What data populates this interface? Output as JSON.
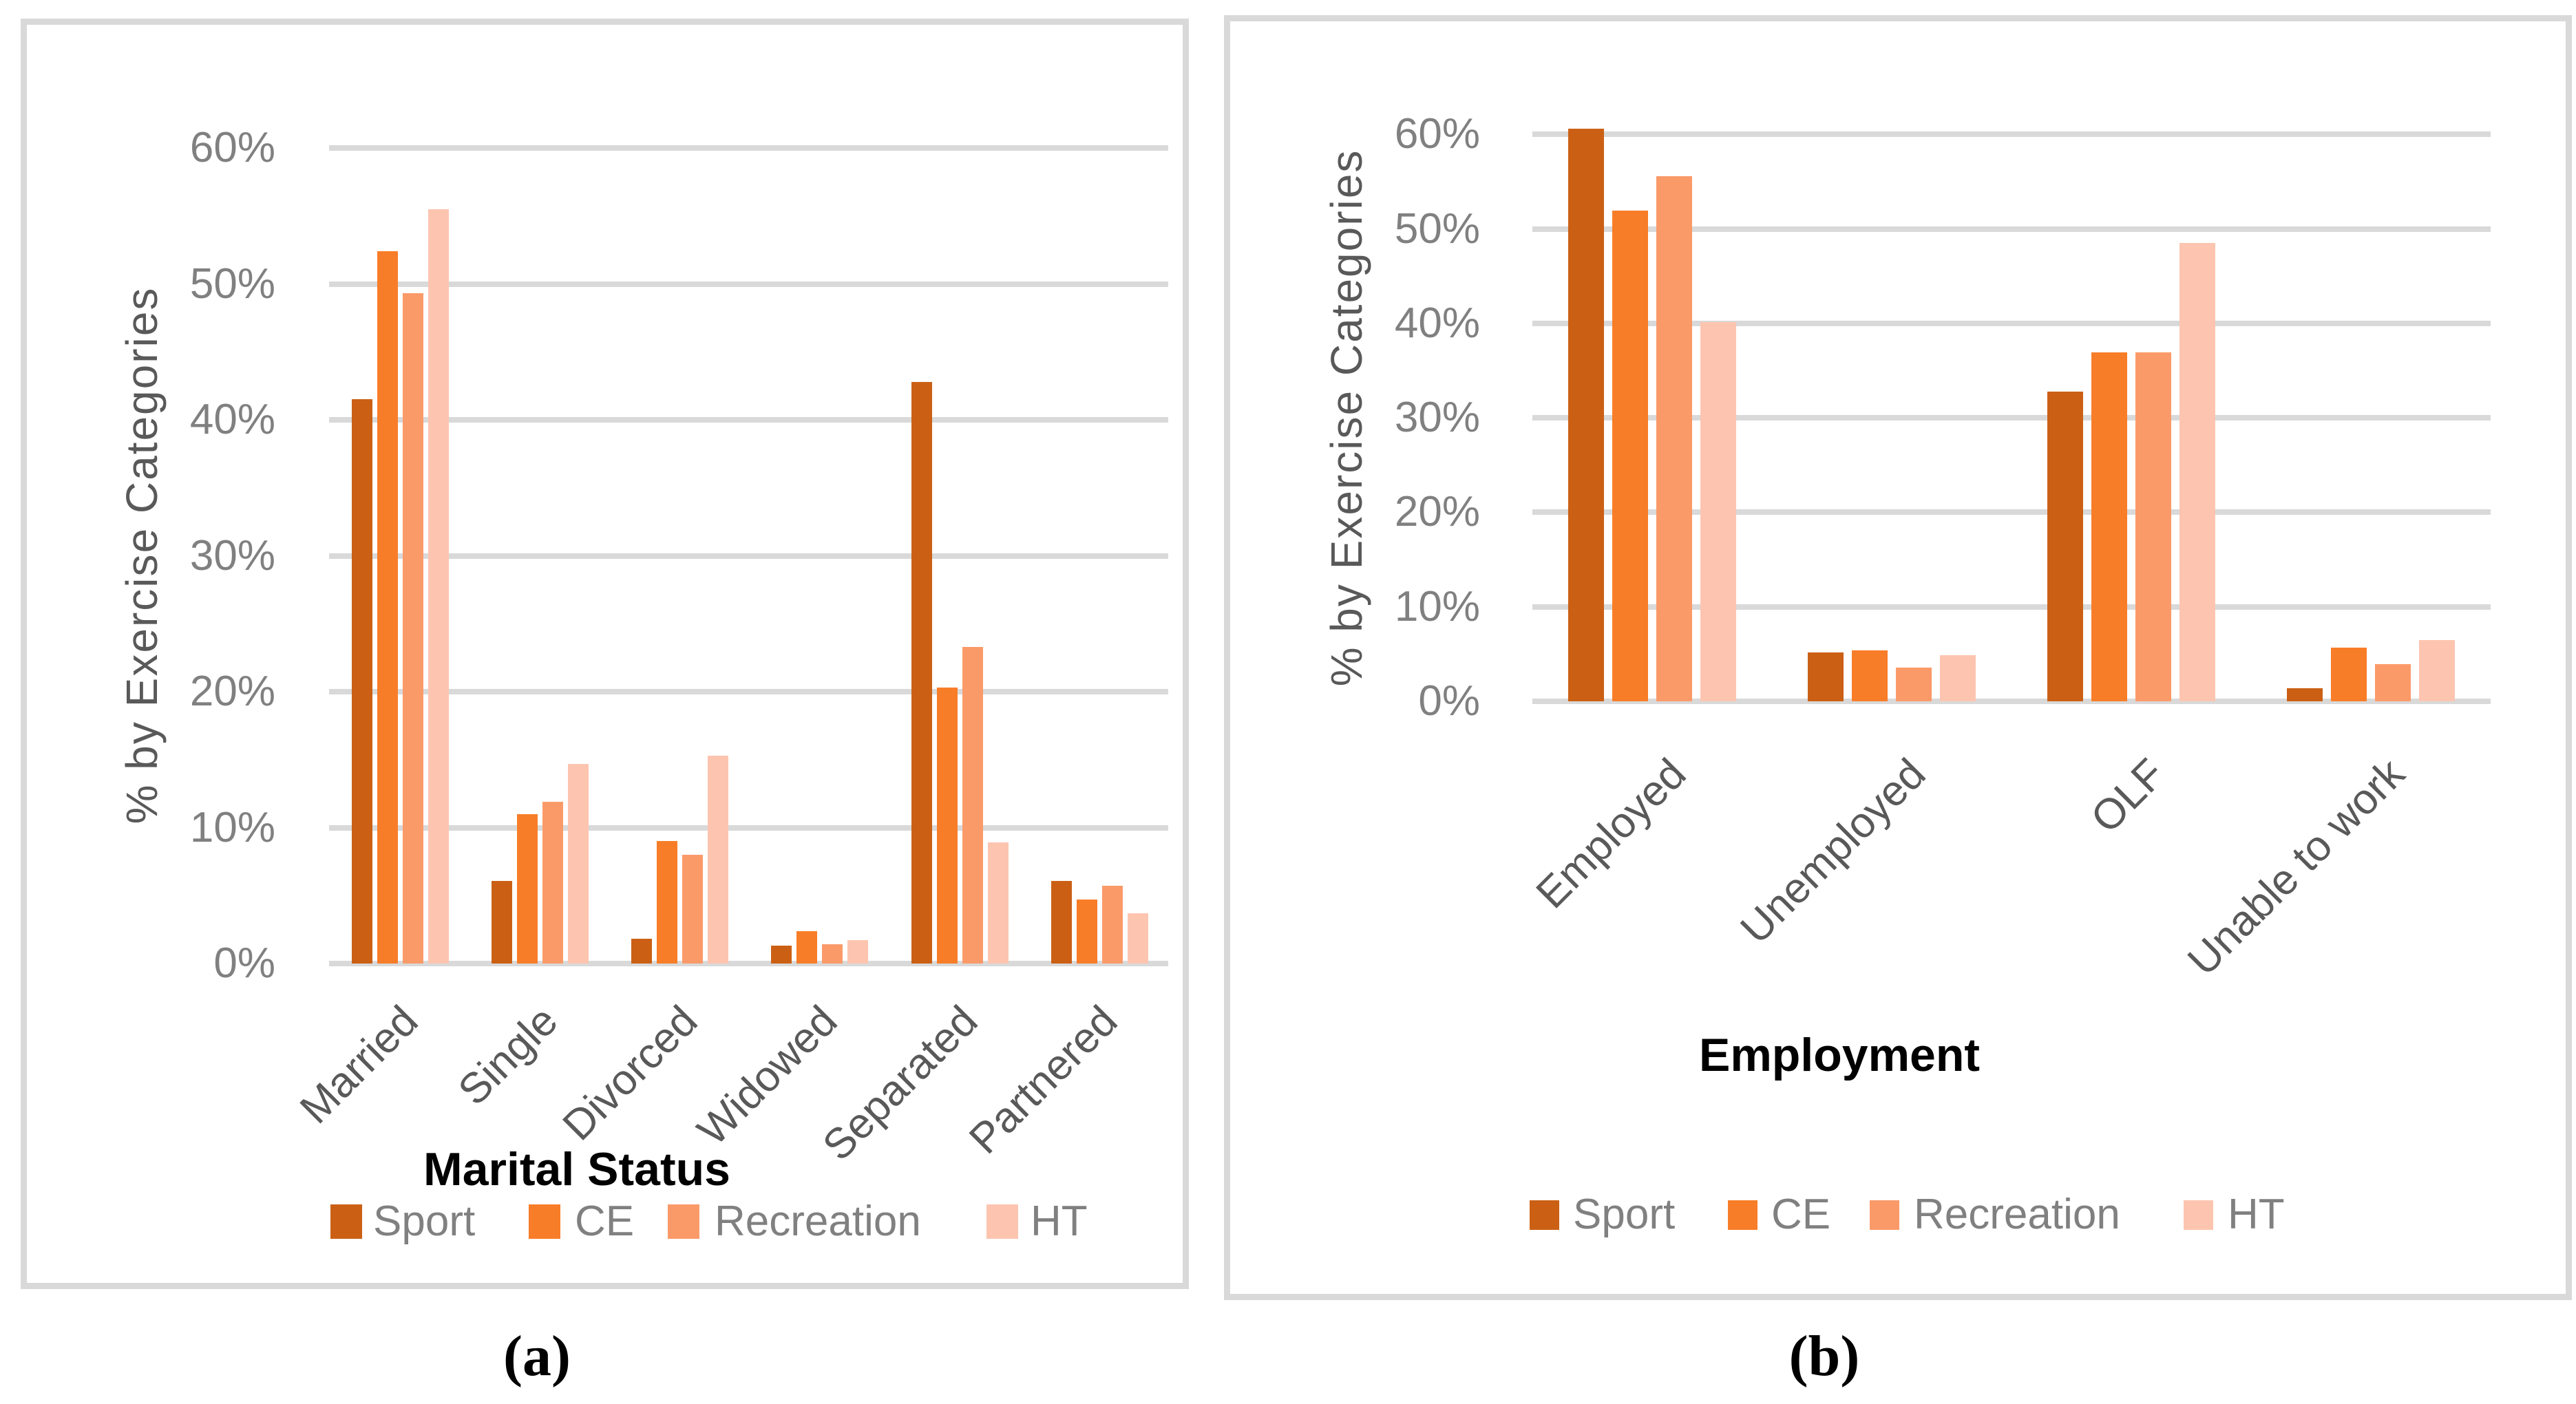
{
  "theme": {
    "background": "#FFFFFF",
    "panel_border_color": "#D9D9D9",
    "gridline_color": "#D9D9D9",
    "tick_text_color": "#808080",
    "axis_label_color": "#595959",
    "axis_title_color": "#000000",
    "legend_text_color": "#808080"
  },
  "series_colors": {
    "Sport": "#CB6015",
    "CE": "#F87D28",
    "Recreation": "#FB9A69",
    "HT": "#FDC5B0"
  },
  "chart_data": [
    {
      "type": "bar",
      "panel": "a",
      "caption": "(a)",
      "title": "",
      "ylabel": "% by Exercise Categories",
      "xlabel": "Marital Status",
      "ylim": [
        0,
        60
      ],
      "ytick_labels": [
        "0%",
        "10%",
        "20%",
        "30%",
        "40%",
        "50%",
        "60%"
      ],
      "grid": true,
      "legend_position": "bottom",
      "categories": [
        "Married",
        "Single",
        "Divorced",
        "Widowed",
        "Separated",
        "Partnered"
      ],
      "series": [
        {
          "name": "Sport",
          "color": "#CB6015",
          "values": [
            41.5,
            6.1,
            1.8,
            1.3,
            42.8,
            6.1
          ]
        },
        {
          "name": "CE",
          "color": "#F87D28",
          "values": [
            52.4,
            11.0,
            9.0,
            2.4,
            20.3,
            4.7
          ]
        },
        {
          "name": "Recreation",
          "color": "#FB9A69",
          "values": [
            49.3,
            11.9,
            8.0,
            1.4,
            23.3,
            5.7
          ]
        },
        {
          "name": "HT",
          "color": "#FDC5B0",
          "values": [
            55.5,
            14.7,
            15.3,
            1.7,
            8.9,
            3.7
          ]
        }
      ]
    },
    {
      "type": "bar",
      "panel": "b",
      "caption": "(b)",
      "title": "",
      "ylabel": "% by Exercise Categories",
      "xlabel": "Employment",
      "ylim": [
        0,
        60
      ],
      "ytick_labels": [
        "0%",
        "10%",
        "20%",
        "30%",
        "40%",
        "50%",
        "60%"
      ],
      "grid": true,
      "legend_position": "bottom",
      "categories": [
        "Employed",
        "Unemployed",
        "OLF",
        "Unable to work"
      ],
      "series": [
        {
          "name": "Sport",
          "color": "#CB6015",
          "values": [
            60.6,
            5.2,
            32.8,
            1.4
          ]
        },
        {
          "name": "CE",
          "color": "#F87D28",
          "values": [
            51.9,
            5.4,
            36.9,
            5.7
          ]
        },
        {
          "name": "Recreation",
          "color": "#FB9A69",
          "values": [
            55.6,
            3.6,
            36.9,
            3.9
          ]
        },
        {
          "name": "HT",
          "color": "#FDC5B0",
          "values": [
            40.1,
            4.9,
            48.5,
            6.5
          ]
        }
      ]
    }
  ]
}
